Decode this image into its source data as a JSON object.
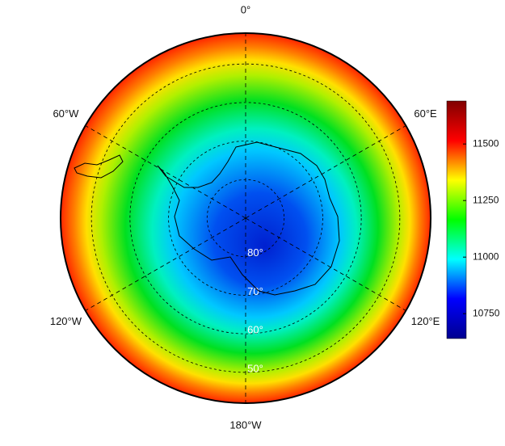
{
  "chart_data": {
    "type": "polar-map",
    "lon_ticks": [
      {
        "value": 0,
        "label": "0°"
      },
      {
        "value": 60,
        "label": "60°E"
      },
      {
        "value": 120,
        "label": "120°E"
      },
      {
        "value": 180,
        "label": "180°W"
      },
      {
        "value": -120,
        "label": "120°W"
      },
      {
        "value": -60,
        "label": "60°W"
      }
    ],
    "lat_ticks": [
      {
        "value": -80,
        "label": "80°"
      },
      {
        "value": -70,
        "label": "70°"
      },
      {
        "value": -60,
        "label": "60°"
      },
      {
        "value": -50,
        "label": "50°"
      }
    ],
    "latlim": [
      -90,
      -42
    ],
    "colorbar": {
      "lim": [
        10640,
        11690
      ],
      "ticks": [
        10750,
        11000,
        11250,
        11500
      ],
      "colors": [
        "#00008f",
        "#0000ff",
        "#00ffff",
        "#00ff00",
        "#ffff00",
        "#ff0000",
        "#800000"
      ]
    }
  }
}
